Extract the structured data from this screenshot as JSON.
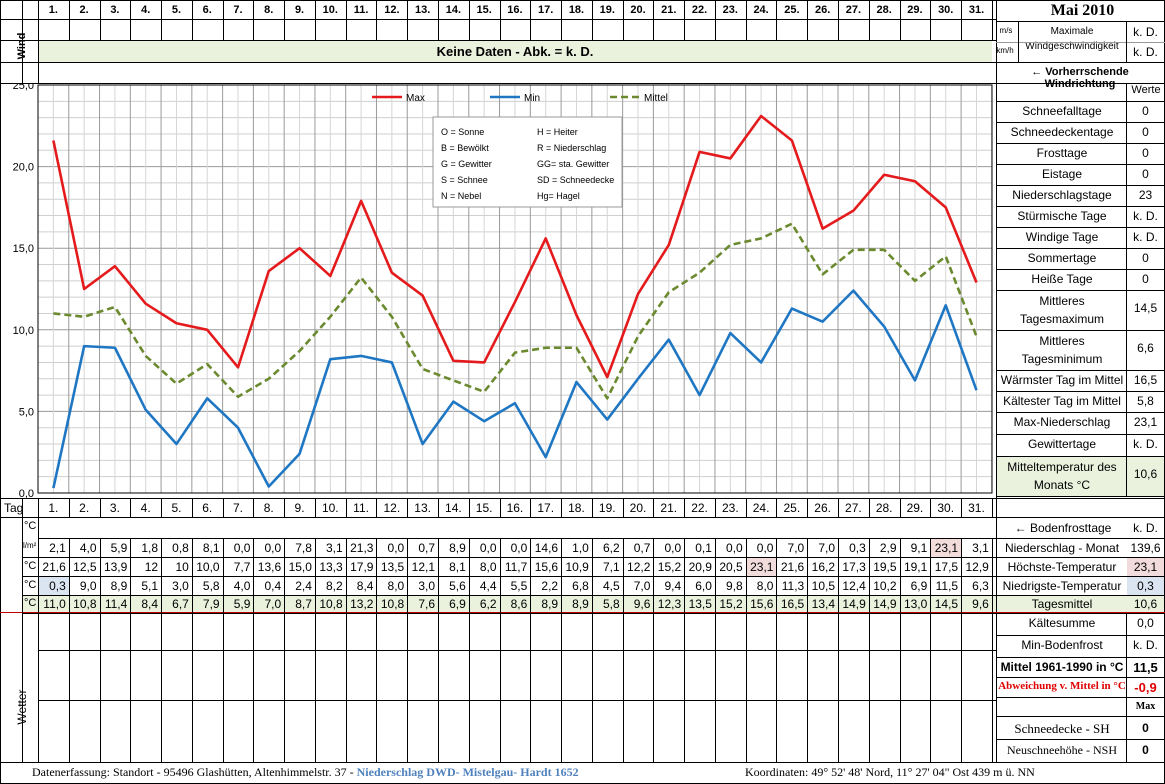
{
  "header": {
    "days": [
      "1.",
      "2.",
      "3.",
      "4.",
      "5.",
      "6.",
      "7.",
      "8.",
      "9.",
      "10.",
      "11.",
      "12.",
      "13.",
      "14.",
      "15.",
      "16.",
      "17.",
      "18.",
      "19.",
      "20.",
      "21.",
      "22.",
      "23.",
      "24.",
      "25.",
      "26.",
      "27.",
      "28.",
      "29.",
      "30.",
      "31."
    ],
    "month_title": "Mai 2010"
  },
  "wind": {
    "label": "Wind",
    "no_data": "Keine Daten - Abk. = k. D.",
    "unit_ms": "m/s",
    "unit_kmh": "km/h",
    "max_label": "Maximale Windgeschwindigkeit",
    "val_ms": "k. D.",
    "val_kmh": "k. D.",
    "direction_label": "← Vorherrschende Windrichtung"
  },
  "legend_box": {
    "rows": [
      [
        "O = Sonne",
        "H = Heiter"
      ],
      [
        "B = Bewölkt",
        "R = Niederschlag"
      ],
      [
        "G = Gewitter",
        "GG= sta. Gewitter"
      ],
      [
        "S = Schnee",
        "SD = Schneedecke"
      ],
      [
        "N = Nebel",
        "Hg= Hagel"
      ]
    ]
  },
  "stats": {
    "header": "Werte",
    "rows": [
      {
        "label": "Schneefalltage",
        "value": "0"
      },
      {
        "label": "Schneedeckentage",
        "value": "0"
      },
      {
        "label": "Frosttage",
        "value": "0"
      },
      {
        "label": "Eistage",
        "value": "0"
      },
      {
        "label": "Niederschlagstage",
        "value": "23"
      },
      {
        "label": "Stürmische Tage",
        "value": "k. D."
      },
      {
        "label": "Windige Tage",
        "value": "k. D."
      },
      {
        "label": "Sommertage",
        "value": "0"
      },
      {
        "label": "Heiße Tage",
        "value": "0"
      },
      {
        "label": "Mittleres Tagesmaximum",
        "value": "14,5"
      },
      {
        "label": "Mittleres Tagesminimum",
        "value": "6,6"
      },
      {
        "label": "Wärmster Tag im Mittel",
        "value": "16,5"
      },
      {
        "label": "Kältester Tag im Mittel",
        "value": "5,8"
      },
      {
        "label": "Max-Niederschlag",
        "value": "23,1"
      },
      {
        "label": "Gewittertage",
        "value": "k. D."
      },
      {
        "label": "Mitteltemperatur des Monats °C",
        "value": "10,6"
      }
    ]
  },
  "table": {
    "tag_label": "Tag",
    "row_c": "°C",
    "row_lm2": "l/m²",
    "bodenfrost_label": "← Bodenfrosttage",
    "bodenfrost_value": "k. D.",
    "precip": [
      "2,1",
      "4,0",
      "5,9",
      "1,8",
      "0,8",
      "8,1",
      "0,0",
      "0,0",
      "7,8",
      "3,1",
      "21,3",
      "0,0",
      "0,7",
      "8,9",
      "0,0",
      "0,0",
      "14,6",
      "1,0",
      "6,2",
      "0,7",
      "0,0",
      "0,1",
      "0,0",
      "0,0",
      "7,0",
      "7,0",
      "0,3",
      "2,9",
      "9,1",
      "23,1",
      "3,1"
    ],
    "precip_label": "Niederschlag - Monat",
    "precip_total": "139,6",
    "tmax": [
      "21,6",
      "12,5",
      "13,9",
      "12",
      "10",
      "10,0",
      "7,7",
      "13,6",
      "15,0",
      "13,3",
      "17,9",
      "13,5",
      "12,1",
      "8,1",
      "8,0",
      "11,7",
      "15,6",
      "10,9",
      "7,1",
      "12,2",
      "15,2",
      "20,9",
      "20,5",
      "23,1",
      "21,6",
      "16,2",
      "17,3",
      "19,5",
      "19,1",
      "17,5",
      "12,9"
    ],
    "tmax_label": "Höchste-Temperatur",
    "tmax_value": "23,1",
    "tmin": [
      "0,3",
      "9,0",
      "8,9",
      "5,1",
      "3,0",
      "5,8",
      "4,0",
      "0,4",
      "2,4",
      "8,2",
      "8,4",
      "8,0",
      "3,0",
      "5,6",
      "4,4",
      "5,5",
      "2,2",
      "6,8",
      "4,5",
      "7,0",
      "9,4",
      "6,0",
      "9,8",
      "8,0",
      "11,3",
      "10,5",
      "12,4",
      "10,2",
      "6,9",
      "11,5",
      "6,3"
    ],
    "tmin_label": "Niedrigste-Temperatur",
    "tmin_value": "0,3",
    "tmean": [
      "11,0",
      "10,8",
      "11,4",
      "8,4",
      "6,7",
      "7,9",
      "5,9",
      "7,0",
      "8,7",
      "10,8",
      "13,2",
      "10,8",
      "7,6",
      "6,9",
      "6,2",
      "8,6",
      "8,9",
      "8,9",
      "5,8",
      "9,6",
      "12,3",
      "13,5",
      "15,2",
      "15,6",
      "16,5",
      "13,4",
      "14,9",
      "14,9",
      "13,0",
      "14,5",
      "9,6"
    ],
    "tmean_label": "Tagesmittel",
    "tmean_value": "10,6"
  },
  "bottom": {
    "kaeltesumme_label": "Kältesumme",
    "kaeltesumme_value": "0,0",
    "bodenfrost_label": "Min-Bodenfrost",
    "bodenfrost_value": "k. D.",
    "mittel_label": "Mittel 1961-1990 in °C",
    "mittel_value": "11,5",
    "abweichung_label": "Abweichung v. Mittel in °C",
    "abweichung_value": "-0,9",
    "max_label": "Max",
    "schneedecke_label": "Schneedecke - SH",
    "schneedecke_value": "0",
    "neuschnee_label": "Neuschneehöhe - NSH",
    "neuschnee_value": "0",
    "wetter_label": "Wetter"
  },
  "footer": {
    "erfassung": "Datenerfassung:  Standort -  95496  Glashütten, Altenhimmelstr. 37 -",
    "station": " Niederschlag DWD- Mistelgau- Hardt 1652",
    "coords": "Koordinaten:  49° 52' 48' Nord,   11° 27' 04\" Ost   439 m ü. NN"
  },
  "colors": {
    "max": "#e41a1c",
    "min": "#1f77c4",
    "mittel": "#6b8a2f",
    "band": "#eaf1dd",
    "highlight_red": "#f2dcdb",
    "highlight_blue": "#dbe5f1",
    "abweichung": "#e00000"
  },
  "chart_data": {
    "type": "line",
    "x": [
      1,
      2,
      3,
      4,
      5,
      6,
      7,
      8,
      9,
      10,
      11,
      12,
      13,
      14,
      15,
      16,
      17,
      18,
      19,
      20,
      21,
      22,
      23,
      24,
      25,
      26,
      27,
      28,
      29,
      30,
      31
    ],
    "series": [
      {
        "name": "Max",
        "values": [
          21.6,
          12.5,
          13.9,
          11.6,
          10.4,
          10.0,
          7.7,
          13.6,
          15.0,
          13.3,
          17.9,
          13.5,
          12.1,
          8.1,
          8.0,
          11.7,
          15.6,
          10.9,
          7.1,
          12.2,
          15.2,
          20.9,
          20.5,
          23.1,
          21.6,
          16.2,
          17.3,
          19.5,
          19.1,
          17.5,
          12.9
        ]
      },
      {
        "name": "Min",
        "values": [
          0.3,
          9.0,
          8.9,
          5.1,
          3.0,
          5.8,
          4.0,
          0.4,
          2.4,
          8.2,
          8.4,
          8.0,
          3.0,
          5.6,
          4.4,
          5.5,
          2.2,
          6.8,
          4.5,
          7.0,
          9.4,
          6.0,
          9.8,
          8.0,
          11.3,
          10.5,
          12.4,
          10.2,
          6.9,
          11.5,
          6.3
        ]
      },
      {
        "name": "Mittel",
        "values": [
          11.0,
          10.8,
          11.4,
          8.4,
          6.7,
          7.9,
          5.9,
          7.0,
          8.7,
          10.8,
          13.2,
          10.8,
          7.6,
          6.9,
          6.2,
          8.6,
          8.9,
          8.9,
          5.8,
          9.6,
          12.3,
          13.5,
          15.2,
          15.6,
          16.5,
          13.4,
          14.9,
          14.9,
          13.0,
          14.5,
          9.6
        ]
      }
    ],
    "yticks": [
      "0,0",
      "5,0",
      "10,0",
      "15,0",
      "20,0",
      "25,0"
    ],
    "ylim": [
      0,
      25
    ],
    "legend": "top",
    "grid": true
  }
}
